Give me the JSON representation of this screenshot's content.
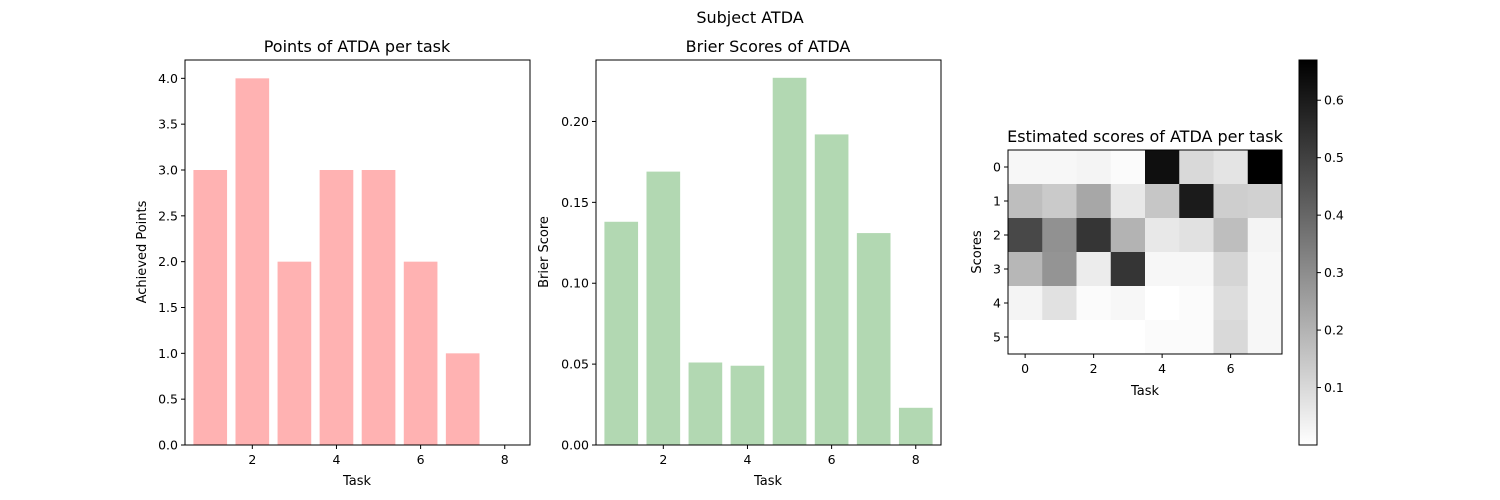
{
  "figure": {
    "suptitle": "Subject ATDA"
  },
  "chart_data": [
    {
      "type": "bar",
      "title": "Points of ATDA per task",
      "xlabel": "Task",
      "ylabel": "Achieved Points",
      "color": "#ffb2b2",
      "categories": [
        1,
        2,
        3,
        4,
        5,
        6,
        7,
        8
      ],
      "values": [
        3,
        4,
        2,
        3,
        3,
        2,
        1,
        0
      ],
      "xlim": [
        0.4,
        8.6
      ],
      "ylim": [
        0,
        4.2
      ],
      "xticks": [
        2,
        4,
        6,
        8
      ],
      "yticks": [
        0.0,
        0.5,
        1.0,
        1.5,
        2.0,
        2.5,
        3.0,
        3.5,
        4.0
      ],
      "ytick_labels": [
        "0.0",
        "0.5",
        "1.0",
        "1.5",
        "2.0",
        "2.5",
        "3.0",
        "3.5",
        "4.0"
      ],
      "grid": false
    },
    {
      "type": "bar",
      "title": "Brier Scores of ATDA",
      "xlabel": "Task",
      "ylabel": "Brier Score",
      "color": "#b2d8b2",
      "categories": [
        1,
        2,
        3,
        4,
        5,
        6,
        7,
        8
      ],
      "values": [
        0.138,
        0.169,
        0.051,
        0.049,
        0.227,
        0.192,
        0.131,
        0.023
      ],
      "xlim": [
        0.4,
        8.6
      ],
      "ylim": [
        0,
        0.238
      ],
      "xticks": [
        2,
        4,
        6,
        8
      ],
      "yticks": [
        0.0,
        0.05,
        0.1,
        0.15,
        0.2
      ],
      "ytick_labels": [
        "0.00",
        "0.05",
        "0.10",
        "0.15",
        "0.20"
      ],
      "grid": false
    },
    {
      "type": "heatmap",
      "title": "Estimated scores of ATDA per task",
      "xlabel": "Task",
      "ylabel": "Scores",
      "colormap": "Greys",
      "rows": [
        0,
        1,
        2,
        3,
        4,
        5
      ],
      "cols": [
        0,
        1,
        2,
        3,
        4,
        5,
        6,
        7
      ],
      "xticks": [
        0,
        2,
        4,
        6
      ],
      "yticks": [
        0,
        1,
        2,
        3,
        4,
        5
      ],
      "values": [
        [
          0.02,
          0.02,
          0.03,
          0.01,
          0.63,
          0.1,
          0.07,
          0.67
        ],
        [
          0.17,
          0.14,
          0.23,
          0.06,
          0.15,
          0.6,
          0.13,
          0.12
        ],
        [
          0.48,
          0.29,
          0.53,
          0.2,
          0.06,
          0.08,
          0.17,
          0.03
        ],
        [
          0.19,
          0.28,
          0.05,
          0.53,
          0.02,
          0.02,
          0.11,
          0.02
        ],
        [
          0.03,
          0.08,
          0.01,
          0.02,
          0.0,
          0.01,
          0.09,
          0.02
        ],
        [
          0.0,
          0.0,
          0.0,
          0.0,
          0.01,
          0.01,
          0.1,
          0.02
        ]
      ],
      "vmin": 0.0,
      "vmax": 0.67,
      "colorbar_ticks": [
        0.1,
        0.2,
        0.3,
        0.4,
        0.5,
        0.6
      ],
      "colorbar_tick_labels": [
        "0.1",
        "0.2",
        "0.3",
        "0.4",
        "0.5",
        "0.6"
      ]
    }
  ]
}
